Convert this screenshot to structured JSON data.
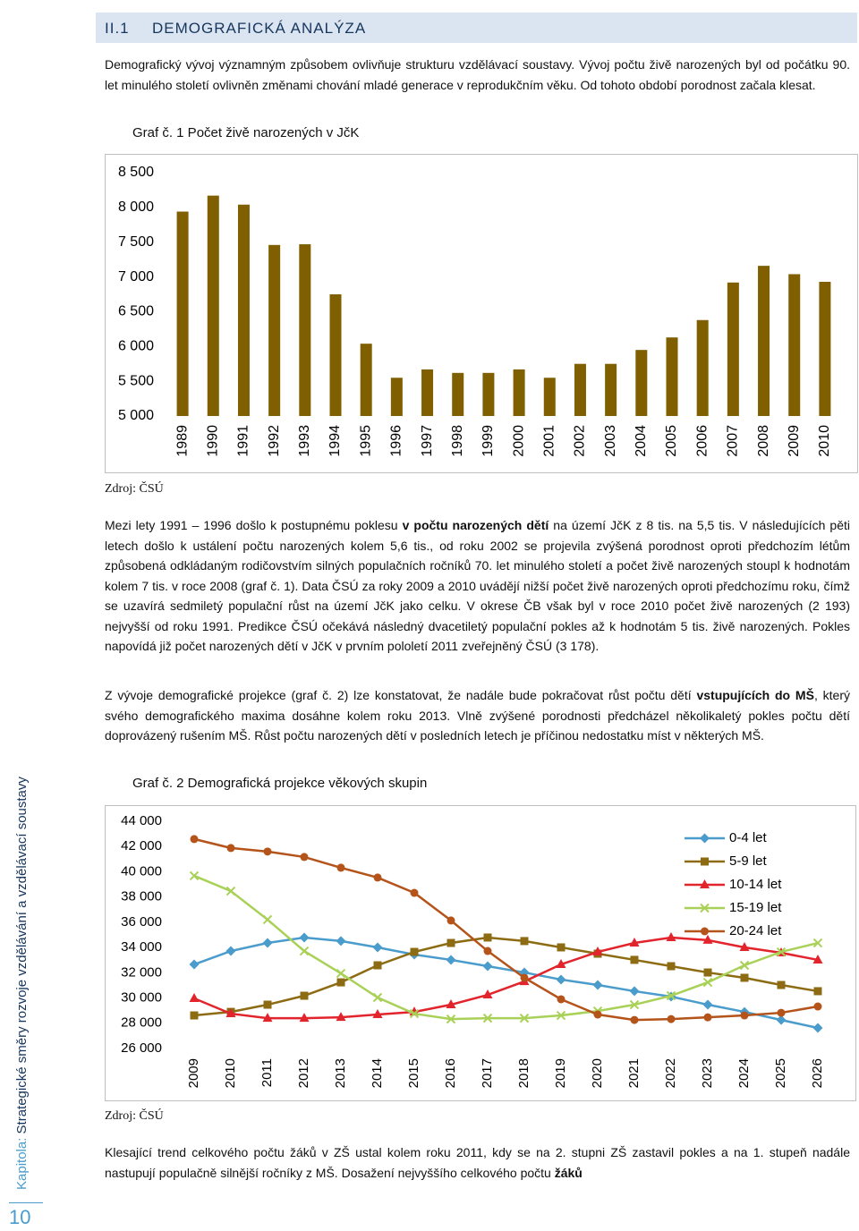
{
  "header": {
    "number": "II.1",
    "title": "DEMOGRAFICKÁ ANALÝZA"
  },
  "sidebar": {
    "label": "Kapitola:",
    "chapter": " Strategické směry rozvoje vzdělávání a vzdělávací soustavy",
    "page": 10
  },
  "paragraphs": [
    [
      "Demografický vývoj významným způsobem ovlivňuje strukturu vzdělávací soustavy. Vývoj počtu živě narozených byl od počátku 90. let minulého století ovlivněn změnami chování mladé generace v reprodukčním věku. Od tohoto období porodnost začala klesat."
    ],
    [
      "Mezi lety 1991 – 1996 došlo k postupnému poklesu ",
      "v počtu narozených dětí",
      " na území JčK z 8 tis. na 5,5 tis. V následujících pěti letech došlo k ustálení počtu narozených kolem 5,6 tis., od roku 2002 se projevila zvýšená porodnost oproti předchozím létům způsobená odkládaným rodičovstvím silných populačních ročníků 70. let minulého století a počet živě narozených stoupl k hodnotám kolem 7 tis. v roce 2008 (graf č. 1). Data ČSÚ za roky 2009 a 2010 uvádějí nižší počet živě narozených oproti předchozímu roku, čímž se uzavírá sedmiletý populační růst na území JčK jako celku. V okrese ČB však byl v roce 2010 počet živě narozených (2 193) nejvyšší od roku 1991. Predikce ČSÚ očekává následný dvacetiletý populační pokles až k hodnotám 5 tis. živě narozených. Pokles napovídá již počet narozených dětí v JčK v prvním pololetí 2011 zveřejněný ČSÚ (3 178)."
    ],
    [
      "Z vývoje demografické projekce (graf č. 2) lze konstatovat, že nadále bude pokračovat růst počtu dětí ",
      "vstupujících do MŠ",
      ", který svého demografického maxima dosáhne kolem roku 2013. Vlně zvýšené porodnosti předcházel několikaletý pokles počtu dětí doprovázený rušením MŠ. Růst počtu narozených dětí v posledních letech je příčinou nedostatku míst v některých MŠ."
    ],
    [
      "Klesající trend celkového počtu žáků v ZŠ ustal kolem roku 2011, kdy se na 2. stupni ZŠ zastavil pokles a na 1. stupeň nadále nastupují populačně silnější ročníky z MŠ. Dosažení nejvyššího celkového počtu ",
      "žáků"
    ]
  ],
  "captions": [
    "Graf č. 1  Počet živě narozených v JčK",
    "Graf č. 2  Demografická projekce věkových skupin"
  ],
  "sources": [
    "Zdroj: ČSÚ",
    "Zdroj: ČSÚ"
  ],
  "chart_data": [
    {
      "type": "bar",
      "categories": [
        "1989",
        "1990",
        "1991",
        "1992",
        "1993",
        "1994",
        "1995",
        "1996",
        "1997",
        "1998",
        "1999",
        "2000",
        "2001",
        "2002",
        "2003",
        "2004",
        "2005",
        "2006",
        "2007",
        "2008",
        "2009",
        "2010"
      ],
      "values": [
        7940,
        8170,
        8040,
        7460,
        7470,
        6750,
        6040,
        5550,
        5670,
        5620,
        5620,
        5670,
        5550,
        5750,
        5750,
        5950,
        6130,
        6380,
        6920,
        7160,
        7040,
        6930
      ],
      "color": "#7f5f00",
      "ylim": [
        5000,
        8500
      ],
      "yticks": [
        {
          "value": 5000,
          "label": "5 000"
        },
        {
          "value": 5500,
          "label": "5 500"
        },
        {
          "value": 6000,
          "label": "6 000"
        },
        {
          "value": 6500,
          "label": "6 500"
        },
        {
          "value": 7000,
          "label": "7 000"
        },
        {
          "value": 7500,
          "label": "7 500"
        },
        {
          "value": 8000,
          "label": "8 000"
        },
        {
          "value": 8500,
          "label": "8 500"
        }
      ],
      "grid": false
    },
    {
      "type": "line",
      "categories": [
        "2009",
        "2010",
        "2011",
        "2012",
        "2013",
        "2014",
        "2015",
        "2016",
        "2017",
        "2018",
        "2019",
        "2020",
        "2021",
        "2022",
        "2023",
        "2024",
        "2025",
        "2026"
      ],
      "series": [
        {
          "name": "0-4 let",
          "color": "#4a9ccc",
          "marker": "diamond",
          "values": [
            32660,
            33720,
            34360,
            34790,
            34510,
            34010,
            33440,
            33020,
            32520,
            32020,
            31460,
            31030,
            30540,
            30110,
            29470,
            28900,
            28260,
            27630
          ]
        },
        {
          "name": "5-9 let",
          "color": "#8c6b12",
          "marker": "square",
          "values": [
            28620,
            28900,
            29470,
            30180,
            31240,
            32590,
            33650,
            34360,
            34790,
            34510,
            34010,
            33510,
            33020,
            32520,
            32020,
            31600,
            31030,
            30540
          ]
        },
        {
          "name": "10-14 let",
          "color": "#e2242c",
          "marker": "triangle",
          "values": [
            29970,
            28760,
            28400,
            28400,
            28470,
            28690,
            28900,
            29470,
            30250,
            31310,
            32660,
            33650,
            34360,
            34790,
            34580,
            34010,
            33580,
            33020
          ]
        },
        {
          "name": "15-19 let",
          "color": "#a9d157",
          "marker": "x",
          "values": [
            39680,
            38470,
            36210,
            33720,
            31950,
            30040,
            28760,
            28330,
            28400,
            28400,
            28620,
            28970,
            29470,
            30180,
            31240,
            32590,
            33650,
            34360
          ]
        },
        {
          "name": "20-24 let",
          "color": "#b4531a",
          "marker": "circle",
          "values": [
            42590,
            41880,
            41600,
            41170,
            40320,
            39540,
            38330,
            36140,
            33720,
            31600,
            29900,
            28690,
            28260,
            28330,
            28470,
            28620,
            28830,
            29330
          ]
        }
      ],
      "ylim": [
        26000,
        44000
      ],
      "yticks": [
        {
          "value": 26000,
          "label": "26 000"
        },
        {
          "value": 28000,
          "label": "28 000"
        },
        {
          "value": 30000,
          "label": "30 000"
        },
        {
          "value": 32000,
          "label": "32 000"
        },
        {
          "value": 34000,
          "label": "34 000"
        },
        {
          "value": 36000,
          "label": "36 000"
        },
        {
          "value": 38000,
          "label": "38 000"
        },
        {
          "value": 40000,
          "label": "40 000"
        },
        {
          "value": 42000,
          "label": "42 000"
        },
        {
          "value": 44000,
          "label": "44 000"
        }
      ],
      "grid": false,
      "legend": "top-right"
    }
  ]
}
